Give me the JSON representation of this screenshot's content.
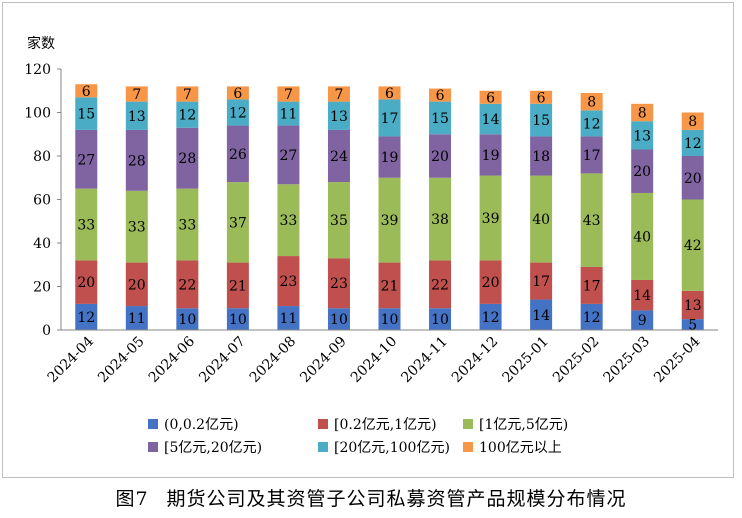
{
  "chart_data": {
    "type": "stacked-bar",
    "ylabel": "家数",
    "ylim": [
      0,
      120
    ],
    "yticks": [
      0,
      20,
      40,
      60,
      80,
      100,
      120
    ],
    "grid": false,
    "legend_placement": "bottom",
    "categories": [
      "2024-04",
      "2024-05",
      "2024-06",
      "2024-07",
      "2024-08",
      "2024-09",
      "2024-10",
      "2024-11",
      "2024-12",
      "2025-01",
      "2025-02",
      "2025-03",
      "2025-04"
    ],
    "series": [
      {
        "name": "(0,0.2亿元)",
        "color": "#4472c4",
        "values": [
          12,
          11,
          10,
          10,
          11,
          10,
          10,
          10,
          12,
          14,
          12,
          9,
          5
        ]
      },
      {
        "name": "[0.2亿元,1亿元)",
        "color": "#c0504d",
        "values": [
          20,
          20,
          22,
          21,
          23,
          23,
          21,
          22,
          20,
          17,
          17,
          14,
          13
        ]
      },
      {
        "name": "[1亿元,5亿元)",
        "color": "#9bbb59",
        "values": [
          33,
          33,
          33,
          37,
          33,
          35,
          39,
          38,
          39,
          40,
          43,
          40,
          42
        ]
      },
      {
        "name": "[5亿元,20亿元)",
        "color": "#8064a2",
        "values": [
          27,
          28,
          28,
          26,
          27,
          24,
          19,
          20,
          19,
          18,
          17,
          20,
          20
        ]
      },
      {
        "name": "[20亿元,100亿元)",
        "color": "#4bacc6",
        "values": [
          15,
          13,
          12,
          12,
          11,
          13,
          17,
          15,
          14,
          15,
          12,
          13,
          12
        ]
      },
      {
        "name": "100亿元以上",
        "color": "#f79646",
        "values": [
          6,
          7,
          7,
          6,
          7,
          7,
          6,
          6,
          6,
          6,
          8,
          8,
          8
        ]
      }
    ]
  },
  "caption": {
    "figure_no": "图7",
    "title": "期货公司及其资管子公司私募资管产品规模分布情况"
  }
}
